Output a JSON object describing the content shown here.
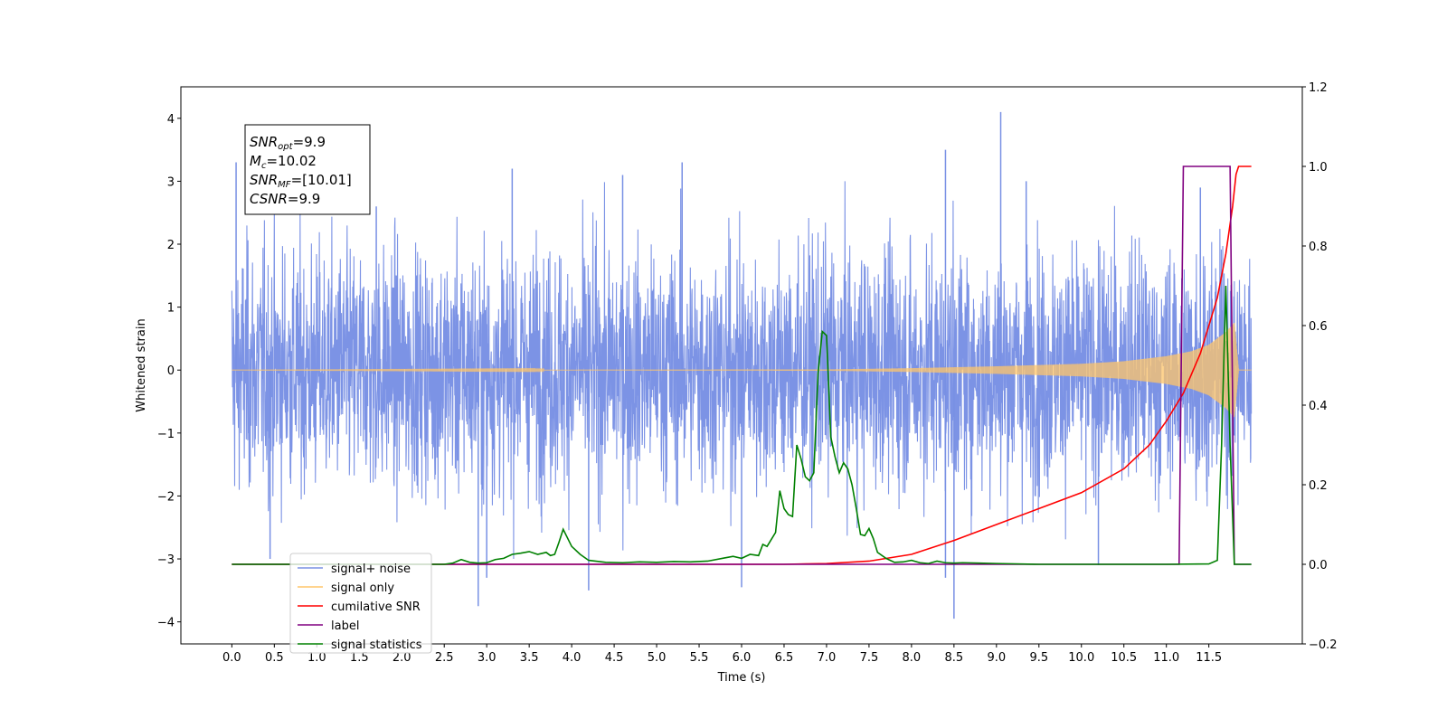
{
  "chart_data": {
    "type": "line",
    "title": "",
    "xlabel": "Time (s)",
    "ylabel": "Whitened strain",
    "y2label": "",
    "xlim": [
      -0.6,
      12.6
    ],
    "ylim": [
      -4.35,
      4.5
    ],
    "y2lim": [
      -0.2,
      1.2
    ],
    "x_ticks": [
      "0.0",
      "0.5",
      "1.0",
      "1.5",
      "2.0",
      "2.5",
      "3.0",
      "3.5",
      "4.0",
      "4.5",
      "5.0",
      "5.5",
      "6.0",
      "6.5",
      "7.0",
      "7.5",
      "8.0",
      "8.5",
      "9.0",
      "9.5",
      "10.0",
      "10.5",
      "11.0",
      "11.5"
    ],
    "y_ticks": [
      "4",
      "3",
      "2",
      "1",
      "0",
      "−1",
      "−2",
      "−3",
      "−4"
    ],
    "y2_ticks": [
      "1.2",
      "1.0",
      "0.8",
      "0.6",
      "0.4",
      "0.2",
      "0.0",
      "−0.2"
    ],
    "grid": false,
    "legend_position": "lower-left",
    "annotation": {
      "lines": [
        {
          "name": "SNR",
          "sub": "opt",
          "value": "=9.9"
        },
        {
          "name": "M",
          "sub": "c",
          "value": "=10.02"
        },
        {
          "name": "SNR",
          "sub": "MF",
          "value": "=[10.01]"
        },
        {
          "name": "CSNR",
          "sub": "",
          "value": "=9.9"
        }
      ]
    },
    "series": [
      {
        "name": "signal+ noise",
        "axis": "left",
        "color": "#7890e4",
        "description_values": "noisy whitened strain, approx std 0.9, range -3.8 to 4.1, 0 to 12 s",
        "peaks": [
          [
            0.05,
            3.3
          ],
          [
            1.7,
            2.6
          ],
          [
            3.3,
            3.2
          ],
          [
            4.6,
            3.1
          ],
          [
            5.3,
            3.3
          ],
          [
            8.4,
            3.5
          ],
          [
            9.05,
            4.1
          ],
          [
            9.35,
            3.0
          ],
          [
            11.4,
            2.9
          ]
        ],
        "troughs": [
          [
            0.45,
            -3.0
          ],
          [
            2.9,
            -3.75
          ],
          [
            3.0,
            -3.3
          ],
          [
            4.2,
            -3.5
          ],
          [
            6.0,
            -3.45
          ],
          [
            8.4,
            -3.3
          ],
          [
            8.5,
            -3.95
          ],
          [
            10.2,
            -3.1
          ]
        ]
      },
      {
        "name": "signal only",
        "axis": "left",
        "color": "#ffc66a",
        "envelope": [
          [
            0.0,
            0.0
          ],
          [
            7.0,
            0.01
          ],
          [
            8.0,
            0.03
          ],
          [
            9.0,
            0.06
          ],
          [
            10.0,
            0.1
          ],
          [
            10.5,
            0.14
          ],
          [
            11.0,
            0.22
          ],
          [
            11.3,
            0.3
          ],
          [
            11.5,
            0.4
          ],
          [
            11.7,
            0.6
          ],
          [
            11.8,
            0.75
          ],
          [
            11.85,
            0.0
          ],
          [
            12.0,
            0.0
          ]
        ]
      },
      {
        "name": "cumilative SNR",
        "axis": "right",
        "color": "#ff0000",
        "points": [
          [
            0.0,
            0.0
          ],
          [
            6.5,
            0.0
          ],
          [
            7.0,
            0.002
          ],
          [
            7.5,
            0.008
          ],
          [
            8.0,
            0.025
          ],
          [
            8.5,
            0.06
          ],
          [
            9.0,
            0.1
          ],
          [
            9.5,
            0.14
          ],
          [
            10.0,
            0.18
          ],
          [
            10.5,
            0.24
          ],
          [
            10.8,
            0.3
          ],
          [
            11.0,
            0.36
          ],
          [
            11.2,
            0.43
          ],
          [
            11.4,
            0.53
          ],
          [
            11.6,
            0.67
          ],
          [
            11.7,
            0.78
          ],
          [
            11.78,
            0.9
          ],
          [
            11.82,
            0.98
          ],
          [
            11.85,
            1.0
          ],
          [
            12.0,
            1.0
          ]
        ]
      },
      {
        "name": "label",
        "axis": "right",
        "color": "#800080",
        "points": [
          [
            0.0,
            0.0
          ],
          [
            11.15,
            0.0
          ],
          [
            11.2,
            1.0
          ],
          [
            11.75,
            1.0
          ],
          [
            11.8,
            0.0
          ],
          [
            12.0,
            0.0
          ]
        ]
      },
      {
        "name": "signal statistics",
        "axis": "right",
        "color": "#008000",
        "points": [
          [
            0.0,
            0.0
          ],
          [
            2.5,
            0.0
          ],
          [
            2.6,
            0.003
          ],
          [
            2.7,
            0.012
          ],
          [
            2.8,
            0.005
          ],
          [
            2.9,
            0.003
          ],
          [
            3.0,
            0.004
          ],
          [
            3.1,
            0.012
          ],
          [
            3.2,
            0.015
          ],
          [
            3.3,
            0.025
          ],
          [
            3.4,
            0.028
          ],
          [
            3.5,
            0.032
          ],
          [
            3.6,
            0.025
          ],
          [
            3.7,
            0.03
          ],
          [
            3.75,
            0.022
          ],
          [
            3.8,
            0.025
          ],
          [
            3.85,
            0.055
          ],
          [
            3.9,
            0.088
          ],
          [
            4.0,
            0.045
          ],
          [
            4.1,
            0.025
          ],
          [
            4.2,
            0.01
          ],
          [
            4.4,
            0.005
          ],
          [
            4.6,
            0.004
          ],
          [
            4.8,
            0.006
          ],
          [
            5.0,
            0.005
          ],
          [
            5.2,
            0.007
          ],
          [
            5.4,
            0.006
          ],
          [
            5.6,
            0.008
          ],
          [
            5.8,
            0.016
          ],
          [
            5.9,
            0.02
          ],
          [
            6.0,
            0.015
          ],
          [
            6.1,
            0.025
          ],
          [
            6.2,
            0.022
          ],
          [
            6.25,
            0.05
          ],
          [
            6.3,
            0.045
          ],
          [
            6.4,
            0.08
          ],
          [
            6.45,
            0.185
          ],
          [
            6.5,
            0.14
          ],
          [
            6.55,
            0.125
          ],
          [
            6.6,
            0.12
          ],
          [
            6.65,
            0.3
          ],
          [
            6.7,
            0.265
          ],
          [
            6.75,
            0.22
          ],
          [
            6.8,
            0.21
          ],
          [
            6.85,
            0.23
          ],
          [
            6.9,
            0.48
          ],
          [
            6.95,
            0.585
          ],
          [
            7.0,
            0.575
          ],
          [
            7.05,
            0.32
          ],
          [
            7.1,
            0.27
          ],
          [
            7.15,
            0.23
          ],
          [
            7.2,
            0.255
          ],
          [
            7.25,
            0.24
          ],
          [
            7.3,
            0.2
          ],
          [
            7.35,
            0.14
          ],
          [
            7.4,
            0.075
          ],
          [
            7.45,
            0.072
          ],
          [
            7.5,
            0.09
          ],
          [
            7.55,
            0.065
          ],
          [
            7.6,
            0.03
          ],
          [
            7.7,
            0.015
          ],
          [
            7.8,
            0.005
          ],
          [
            7.9,
            0.006
          ],
          [
            8.0,
            0.01
          ],
          [
            8.1,
            0.004
          ],
          [
            8.2,
            0.002
          ],
          [
            8.3,
            0.008
          ],
          [
            8.4,
            0.004
          ],
          [
            8.5,
            0.003
          ],
          [
            8.6,
            0.004
          ],
          [
            8.8,
            0.003
          ],
          [
            9.0,
            0.002
          ],
          [
            9.5,
            0.0
          ],
          [
            10.0,
            0.0
          ],
          [
            11.0,
            0.0
          ],
          [
            11.5,
            0.001
          ],
          [
            11.6,
            0.01
          ],
          [
            11.65,
            0.3
          ],
          [
            11.7,
            0.7
          ],
          [
            11.75,
            0.3
          ],
          [
            11.8,
            0.0
          ],
          [
            12.0,
            0.0
          ]
        ]
      }
    ],
    "legend": [
      {
        "label": "signal+ noise",
        "color": "#7890e4"
      },
      {
        "label": "signal only",
        "color": "#ffc66a"
      },
      {
        "label": "cumilative SNR",
        "color": "#ff0000"
      },
      {
        "label": "label",
        "color": "#800080"
      },
      {
        "label": "signal statistics",
        "color": "#008000"
      }
    ]
  }
}
